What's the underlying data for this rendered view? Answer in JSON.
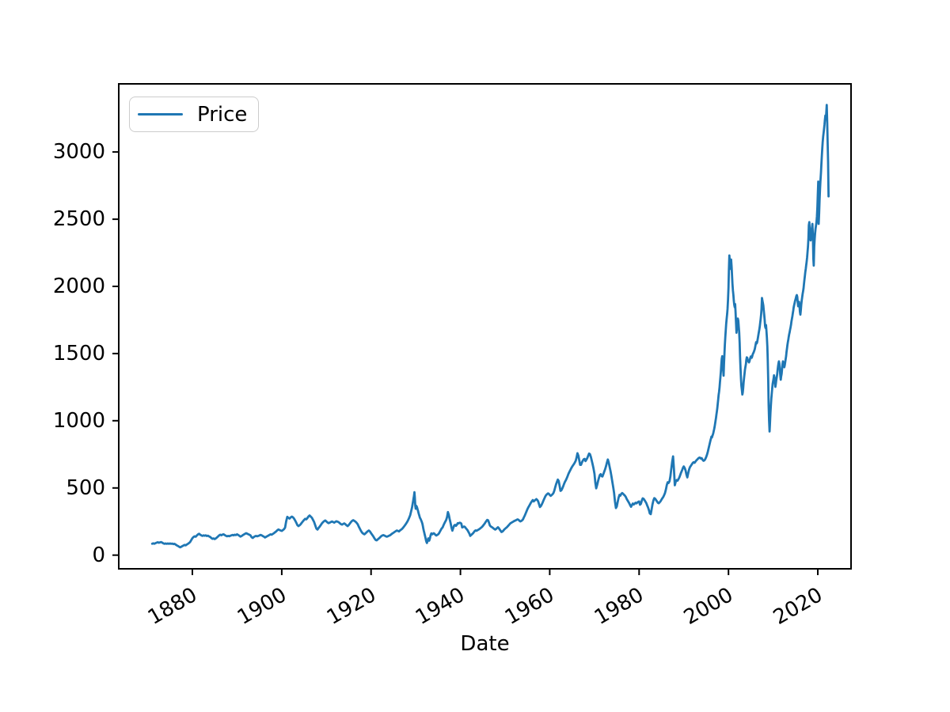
{
  "figure": {
    "background": "#ffffff"
  },
  "chart_data": {
    "type": "line",
    "title": "",
    "xlabel": "Date",
    "ylabel": "",
    "legend": {
      "entries": [
        "Price"
      ],
      "position": "upper left"
    },
    "axes": {
      "x_ticks": [
        1880,
        1900,
        1920,
        1940,
        1960,
        1980,
        2000,
        2020
      ],
      "y_ticks": [
        0,
        500,
        1000,
        1500,
        2000,
        2500,
        3000
      ],
      "x_range_years": [
        1871,
        2022.4
      ],
      "y_range": [
        0,
        3350
      ],
      "grid": false,
      "x_tick_label_rotation_deg": 30
    },
    "style": {
      "line_color": "#1f77b4",
      "axis_color": "#000000",
      "legend_border_color": "#cccccc"
    },
    "series": [
      {
        "name": "Price",
        "segments": [
          {
            "start_year": 1871.0,
            "step_years": 0.25,
            "values": [
              85,
              88,
              85,
              89,
              93,
              96,
              92,
              95,
              97,
              93,
              88,
              84,
              87,
              84,
              87,
              84,
              87,
              84,
              86,
              82,
              84,
              79,
              73,
              68,
              63,
              58,
              62,
              67,
              71,
              76,
              73,
              79,
              84,
              90,
              98,
              112,
              126,
              135,
              140,
              137
            ]
          },
          {
            "start_year": 1881.0,
            "step_years": 0.25,
            "values": [
              146,
              154,
              159,
              152,
              147,
              143,
              147,
              144,
              147,
              142,
              145,
              139,
              135,
              127,
              121,
              124,
              119,
              124,
              131,
              139,
              147,
              152,
              148,
              153,
              155,
              149,
              144,
              140,
              143,
              141,
              144,
              147,
              150,
              147,
              152,
              149,
              155,
              150,
              144,
              138,
              142,
              148,
              153,
              158,
              163,
              160,
              156,
              152,
              147,
              133,
              128,
              135,
              140,
              143,
              140,
              143,
              146,
              151,
              147,
              142,
              138,
              131,
              136,
              141,
              145,
              150,
              155,
              152,
              158,
              163,
              170,
              176,
              184,
              191,
              187,
              183,
              180,
              186,
              193,
              205
            ]
          },
          {
            "start_year": 1901.0,
            "step_years": 0.25,
            "values": [
              252,
              285,
              277,
              272,
              280,
              287,
              282,
              272,
              258,
              242,
              224,
              216,
              222,
              230,
              242,
              252,
              262,
              270,
              266,
              276,
              288,
              295,
              287,
              278,
              262,
              246,
              222,
              198,
              190,
              202,
              212,
              224,
              236,
              246,
              253,
              258,
              250,
              243,
              238,
              242,
              246,
              250,
              246,
              242,
              248,
              252,
              249,
              245,
              238,
              231,
              227,
              232,
              236,
              230,
              222,
              216,
              224,
              235,
              246,
              255,
              260,
              255,
              249,
              241,
              230,
              212,
              196,
              180,
              167,
              160,
              155,
              162,
              170,
              178,
              183,
              176,
              163,
              152,
              140,
              125,
              113,
              110,
              117,
              124
            ]
          },
          {
            "start_year": 1922.0,
            "step_years": 0.25,
            "values": [
              132,
              140,
              146,
              149,
              146,
              141,
              137,
              140,
              144,
              148,
              154,
              161,
              166,
              172,
              178,
              183,
              180,
              176,
              184,
              190,
              197,
              207,
              218,
              230,
              243,
              258,
              276,
              296
            ]
          },
          {
            "start_year": 1929.0,
            "step_years": 0.1,
            "values": [
              330,
              345,
              360,
              380,
              400,
              420,
              440,
              468,
              430,
              365,
              345,
              368,
              362,
              355,
              342,
              330,
              318,
              305,
              294,
              282,
              274,
              268,
              260,
              252,
              242,
              232,
              215,
              198,
              182,
              168,
              154,
              140,
              125,
              110,
              98,
              90,
              101,
              112,
              125,
              118,
              108,
              115,
              128,
              145,
              154,
              162,
              158,
              155,
              158,
              160
            ]
          },
          {
            "start_year": 1934.0,
            "step_years": 0.2,
            "values": [
              163,
              159,
              151,
              146,
              150,
              154,
              162,
              174,
              187,
              199,
              205,
              221,
              236,
              249,
              261,
              283,
              320,
              300,
              268,
              238,
              205,
              182,
              203,
              220,
              225,
              218,
              226,
              238,
              236,
              241
            ]
          },
          {
            "start_year": 1940.0,
            "step_years": 0.2,
            "values": [
              240,
              235,
              206,
              209,
              213,
              210,
              201,
              193,
              185,
              173,
              160,
              143,
              149,
              156,
              162,
              170,
              179,
              184,
              181,
              185,
              189,
              193,
              198,
              203,
              209,
              216,
              225,
              234,
              244,
              254,
              262,
              259,
              241,
              221,
              213,
              209,
              205,
              199,
              194,
              190,
              195,
              202,
              207,
              201,
              190,
              181,
              172,
              175,
              182,
              190
            ]
          },
          {
            "start_year": 1950.0,
            "step_years": 0.2,
            "values": [
              196,
              202,
              208,
              215,
              222,
              230,
              237,
              241,
              245,
              249,
              253,
              256,
              259,
              263,
              266,
              263,
              256,
              251,
              254,
              259,
              266,
              280,
              294,
              310,
              326,
              342,
              356,
              367,
              379,
              391,
              401,
              410,
              400,
              406,
              411,
              417,
              411,
              400,
              379,
              358,
              365,
              377,
              391,
              407,
              423,
              437,
              447,
              454,
              459,
              456,
              448,
              441,
              446,
              452,
              461
            ]
          },
          {
            "start_year": 1961.0,
            "step_years": 0.2,
            "values": [
              478,
              502,
              525,
              545,
              562,
              552,
              515,
              478,
              482,
              495,
              512,
              530,
              545,
              558,
              572,
              588,
              605,
              620,
              633,
              646,
              658,
              668,
              677,
              688,
              702,
              726,
              758,
              740,
              706,
              672
            ]
          },
          {
            "start_year": 1967.0,
            "step_years": 0.2,
            "values": [
              672,
              690,
              703,
              713,
              716,
              700,
              710,
              722,
              740,
              756,
              752,
              730,
              703,
              675,
              645,
              606,
              540,
              497,
              522,
              550,
              574,
              595,
              603,
              588,
              585,
              604,
              622,
              640,
              662,
              690,
              712,
              690,
              655,
              625,
              588,
              548,
              505,
              462,
              400,
              350
            ]
          },
          {
            "start_year": 1975.0,
            "step_years": 0.2,
            "values": [
              362,
              395,
              425,
              448,
              442,
              455,
              462,
              457,
              450,
              444,
              434,
              420,
              408,
              396,
              385,
              371,
              360,
              374,
              384,
              377,
              383,
              390,
              385,
              391,
              396,
              400,
              375,
              382,
              406,
              422,
              420,
              409,
              399,
              388,
              370,
              355,
              335,
              310,
              305,
              340
            ]
          },
          {
            "start_year": 1983.0,
            "step_years": 0.2,
            "values": [
              378,
              408,
              424,
              420,
              410,
              400,
              390,
              386,
              393,
              401,
              412,
              423,
              433,
              446,
              462,
              490,
              522,
              542,
              537,
              550,
              585,
              640,
              695,
              735,
              640
            ]
          },
          {
            "start_year": 1988.0,
            "step_years": 0.2,
            "values": [
              520,
              548,
              558,
              554,
              566,
              578,
              596,
              614,
              630,
              648,
              660,
              648,
              630,
              600,
              578,
              612,
              638,
              655,
              666,
              676,
              685,
              692,
              687,
              695,
              704,
              711,
              718,
              724,
              726,
              719,
              722,
              710,
              702,
              705,
              714,
              728,
              748,
              772,
              800,
              830
            ]
          },
          {
            "start_year": 1996.0,
            "step_years": 0.1,
            "values": [
              858,
              870,
              882,
              876,
              886,
              896,
              908,
              922,
              938,
              956,
              975,
              998,
              1020,
              1044,
              1068,
              1095,
              1125,
              1158,
              1190,
              1215,
              1248,
              1285,
              1325,
              1368,
              1415,
              1462,
              1480,
              1440,
              1380,
              1335,
              1420,
              1500,
              1565,
              1625,
              1678,
              1722,
              1760,
              1795,
              1832,
              1900,
              1990,
              2120,
              2230,
              2180,
              2130,
              2160,
              2200,
              2150,
              2080,
              2020,
              1970,
              1935,
              1895,
              1862,
              1845,
              1868,
              1800,
              1720,
              1655,
              1690,
              1730,
              1760,
              1745,
              1705,
              1660,
              1580,
              1480,
              1390,
              1310,
              1260,
              1230,
              1195
            ]
          },
          {
            "start_year": 2003.2,
            "step_years": 0.1,
            "values": [
              1210,
              1245,
              1285,
              1320,
              1352,
              1380,
              1402,
              1422,
              1452,
              1472,
              1468,
              1455,
              1446,
              1438,
              1434,
              1442,
              1455,
              1468,
              1478,
              1472,
              1468,
              1478,
              1490,
              1500,
              1506,
              1514,
              1524,
              1536,
              1552,
              1570,
              1585,
              1575,
              1582,
              1598,
              1618,
              1640,
              1658,
              1678,
              1700,
              1726,
              1755,
              1790,
              1830,
              1914,
              1895,
              1878,
              1858,
              1825,
              1790,
              1750,
              1705,
              1690,
              1712,
              1672,
              1620,
              1550,
              1450,
              1300,
              1120,
              1000,
              920
            ]
          },
          {
            "start_year": 2009.3,
            "step_years": 0.1,
            "values": [
              980,
              1060,
              1120,
              1165,
              1205,
              1245,
              1275,
              1295,
              1315,
              1338,
              1320,
              1285,
              1252,
              1275,
              1300,
              1322,
              1345,
              1375,
              1405,
              1428,
              1442,
              1425,
              1385,
              1340,
              1305,
              1330,
              1348,
              1385,
              1420,
              1442,
              1428,
              1408,
              1398,
              1415,
              1435,
              1458,
              1482,
              1512,
              1538,
              1562,
              1585,
              1605,
              1625,
              1645,
              1660,
              1678,
              1695,
              1715,
              1738,
              1758,
              1778,
              1798,
              1820,
              1842,
              1860,
              1875,
              1890,
              1902,
              1915,
              1928,
              1935,
              1922,
              1885,
              1852,
              1872,
              1885,
              1855,
              1812,
              1790,
              1825,
              1862,
              1895,
              1920,
              1942,
              1962,
              1985,
              2015,
              2048,
              2078,
              2105,
              2130,
              2155,
              2182,
              2215,
              2252,
              2295,
              2360,
              2455,
              2478,
              2405,
              2355,
              2342,
              2380,
              2415,
              2442,
              2465,
              2380,
              2205,
              2155,
              2295,
              2355,
              2395,
              2430,
              2455,
              2475,
              2520,
              2590,
              2680,
              2780,
              2465,
              2545,
              2650,
              2720,
              2790,
              2845,
              2905,
              2970,
              3030,
              3075,
              3115,
              3145,
              3172,
              3205,
              3240,
              3272,
              3245,
              3290,
              3350,
              3220,
              3080,
              2930,
              2670
            ]
          }
        ]
      }
    ]
  }
}
